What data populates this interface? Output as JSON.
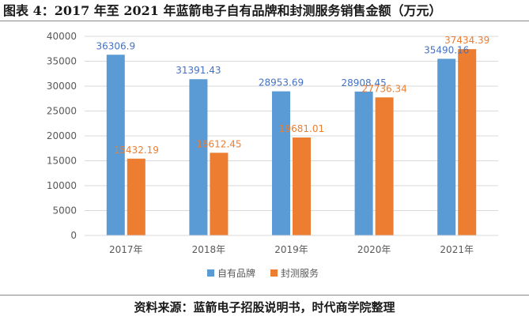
{
  "figure_title": "图表 4：2017 年至 2021 年蓝箭电子自有品牌和封测服务销售金额（万元）",
  "source_text": "资料来源：蓝箭电子招股说明书，时代商学院整理",
  "colors": {
    "series_0": "#5b9bd5",
    "series_1": "#ed7d31",
    "axis_text": "#595959",
    "gridline": "#d9d9d9",
    "label_0": "#4472c4",
    "label_1": "#ed7d31"
  },
  "chart_data": {
    "type": "bar",
    "title": "2017 年至 2021 年蓝箭电子自有品牌和封测服务销售金额（万元）",
    "xlabel": "",
    "ylabel": "",
    "ylim": [
      0,
      40000
    ],
    "yticks": [
      0,
      5000,
      10000,
      15000,
      20000,
      25000,
      30000,
      35000,
      40000
    ],
    "ytick_labels": [
      "0",
      "5000",
      "10000",
      "15000",
      "20000",
      "25000",
      "30000",
      "35000",
      "40000"
    ],
    "grid": true,
    "legend_position": "bottom",
    "categories": [
      "2017年",
      "2018年",
      "2019年",
      "2020年",
      "2021年"
    ],
    "series": [
      {
        "name": "自有品牌",
        "values": [
          36306.9,
          31391.43,
          28953.69,
          28908.45,
          35490.16
        ],
        "labels": [
          "36306.9",
          "31391.43",
          "28953.69",
          "28908.45",
          "35490.16"
        ]
      },
      {
        "name": "封测服务",
        "values": [
          15432.19,
          16612.45,
          19681.01,
          27736.34,
          37434.39
        ],
        "labels": [
          "15432.19",
          "16612.45",
          "19681.01",
          "27736.34",
          "37434.39"
        ]
      }
    ]
  }
}
